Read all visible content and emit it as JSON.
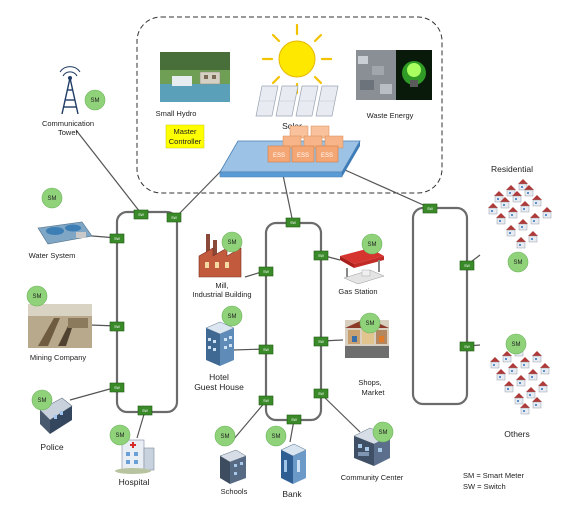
{
  "sources": {
    "small_hydro": "Small Hydro",
    "solar": "Solar",
    "waste_energy": "Waste Energy",
    "master_controller_line1": "Master",
    "master_controller_line2": "Controller",
    "ess": "ESS"
  },
  "nodes": {
    "communication_tower_line1": "Communication",
    "communication_tower_line2": "Tower",
    "water_system": "Water System",
    "mining_company": "Mining Company",
    "police": "Police",
    "hospital": "Hospital",
    "mill_line1": "Mill,",
    "mill_line2": "Industrial Building",
    "hotel_line1": "Hotel",
    "hotel_line2": "Guest House",
    "schools": "Schools",
    "bank": "Bank",
    "gas_station": "Gas Station",
    "shops_line1": "Shops,",
    "shops_line2": "Market",
    "community_center": "Community Center",
    "residential": "Residential",
    "others": "Others"
  },
  "badges": {
    "smart_meter": "SM",
    "switch": "SW"
  },
  "legend": {
    "sm": "SM = Smart Meter",
    "sw": "SW = Switch"
  },
  "colors": {
    "badge_green": "#8fd27a",
    "switch_green": "#3a8a2a",
    "ess_orange": "#f4a674",
    "platform_blue": "#5b9bd5",
    "master_yellow": "#ffff00"
  }
}
